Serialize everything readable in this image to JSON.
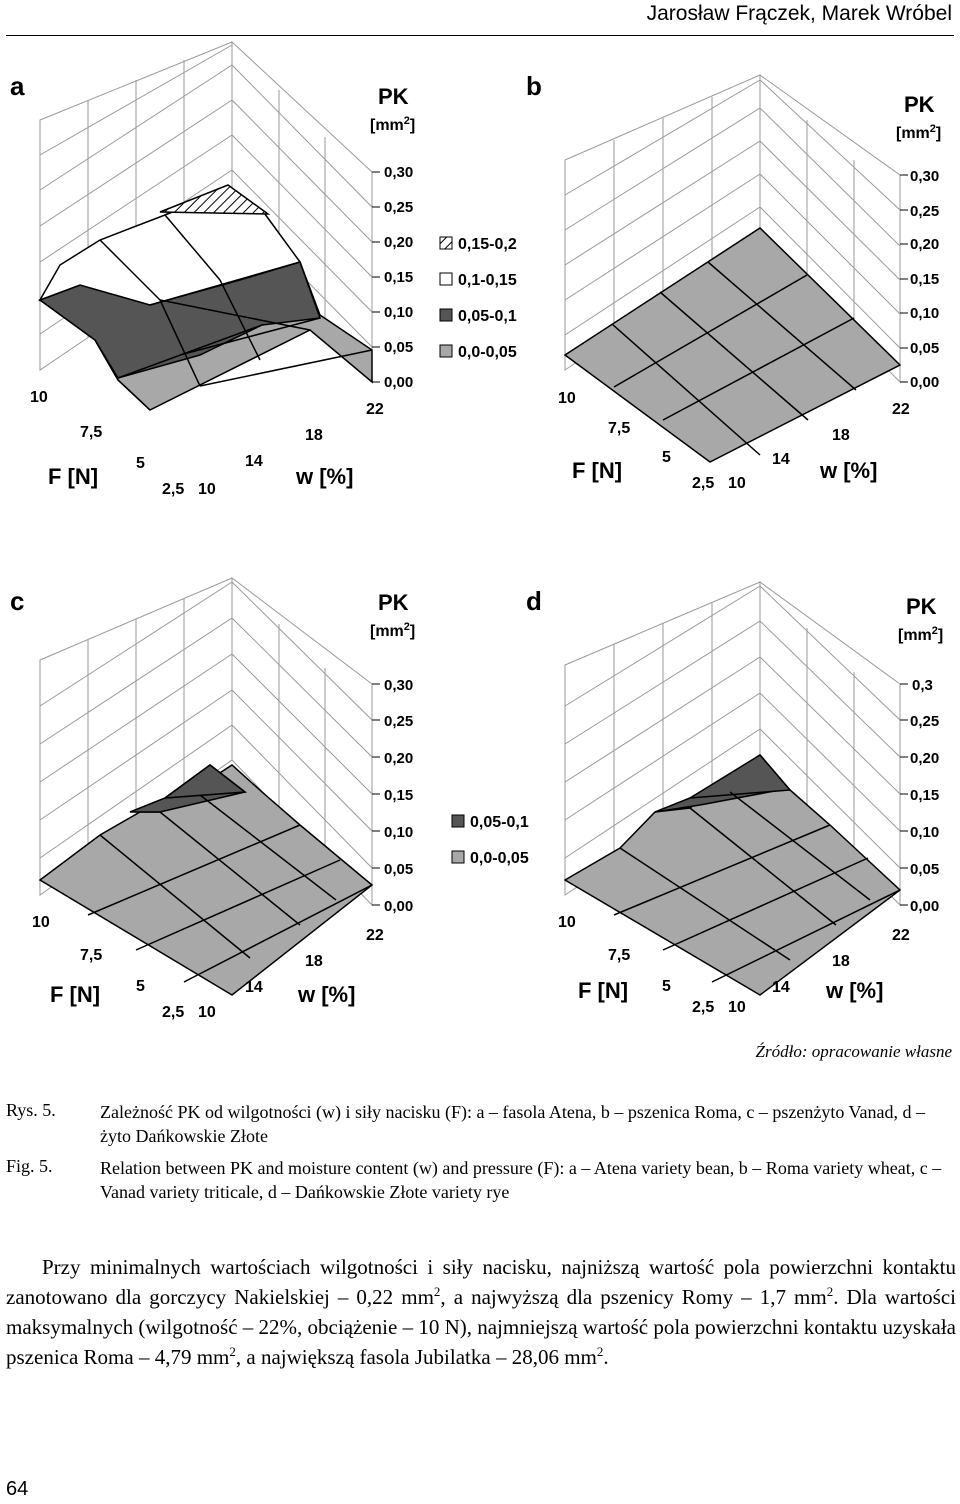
{
  "header": {
    "authors": "Jarosław Frączek, Marek Wróbel"
  },
  "figure": {
    "panels": [
      {
        "letter": "a",
        "z_ticks": [
          "0,30",
          "0,25",
          "0,20",
          "0,15",
          "0,10",
          "0,05",
          "0,00"
        ],
        "legend": [
          {
            "label": "0,15-0,2",
            "pattern": "hatch"
          },
          {
            "label": "0,1-0,15",
            "pattern": "white"
          },
          {
            "label": "0,05-0,1",
            "pattern": "dark"
          },
          {
            "label": "0,0-0,05",
            "pattern": "light"
          }
        ]
      },
      {
        "letter": "b",
        "z_ticks": [
          "0,30",
          "0,25",
          "0,20",
          "0,15",
          "0,10",
          "0,05",
          "0,00"
        ],
        "legend": []
      },
      {
        "letter": "c",
        "z_ticks": [
          "0,30",
          "0,25",
          "0,20",
          "0,15",
          "0,10",
          "0,05",
          "0,00"
        ],
        "legend": [
          {
            "label": "0,05-0,1",
            "pattern": "dark"
          },
          {
            "label": "0,0-0,05",
            "pattern": "light"
          }
        ]
      },
      {
        "letter": "d",
        "z_ticks": [
          "0,3",
          "0,25",
          "0,20",
          "0,15",
          "0,10",
          "0,05",
          "0,00"
        ],
        "legend": []
      }
    ],
    "z_title": "PK",
    "z_unit_base": "[mm",
    "z_unit_exp": "2",
    "z_unit_close": "]",
    "f_ticks": [
      "10",
      "7,5",
      "5",
      "2,5"
    ],
    "w_ticks": [
      "10",
      "14",
      "18",
      "22"
    ],
    "f_label": "F [N]",
    "w_label": "w [%]",
    "colors": {
      "hatch": "#ffffff",
      "white": "#ffffff",
      "dark": "#555555",
      "light": "#a8a8a8",
      "grid": "#9a9a9a"
    }
  },
  "source_note": "Źródło: opracowanie własne",
  "caption": {
    "pl_label": "Rys. 5.",
    "pl_text": "Zależność PK od wilgotności (w) i siły nacisku (F): a – fasola Atena, b – pszenica Roma, c – pszenżyto Vanad, d – żyto Dańkowskie Złote",
    "en_label": "Fig. 5.",
    "en_text": "Relation between PK and moisture content (w) and pressure (F): a – Atena variety bean, b – Roma variety wheat, c – Vanad variety triticale, d – Dańkowskie Złote variety rye"
  },
  "body": {
    "t1": "Przy minimalnych wartościach wilgotności i siły nacisku, najniższą wartość pola powierzchni kontaktu zanotowano dla gorczycy Nakielskiej – 0,22 mm",
    "sup1": "2",
    "t2": ", a najwyższą dla pszenicy Romy – 1,7 mm",
    "sup2": "2",
    "t3": ". Dla wartości maksymalnych (wilgotność – 22%, obciążenie – 10 N), najmniejszą wartość pola powierzchni kontaktu uzyskała pszenica Roma – 4,79 mm",
    "sup3": "2",
    "t4": ", a największą fasola Jubilatka – 28,06 mm",
    "sup4": "2",
    "t5": "."
  },
  "page_number": "64"
}
